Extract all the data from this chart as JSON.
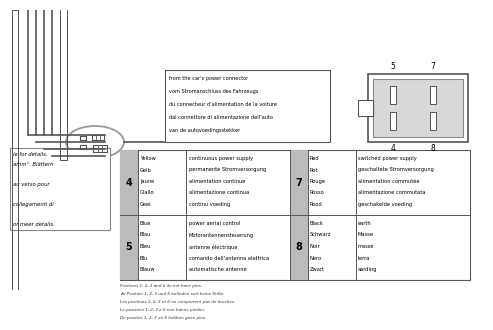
{
  "table_data": [
    {
      "pin": "4",
      "color_name": "Yellow\nGelb\nJaune\nGiallo\nGeel",
      "description": "continuous power supply\npermanente Stromversorgung\nalimentation continue\nalimentazione continua\ncontinu voeding",
      "pin2": "7",
      "color_name2": "Red\nRot\nRouge\nRosso\nRood",
      "description2": "switched power supply\ngeschaltete Stromversorgung\nalimentation commutée\nalimentazione commutata\ngeschakelde voeding"
    },
    {
      "pin": "5",
      "color_name": "Blue\nBlau\nBleu\nBlu\nBlauw",
      "description": "power aerial control\nMotorantennensteuerung\nantenne électrique\ncomando dell'antenna elettrica\nautomatische antenne",
      "pin2": "8",
      "color_name2": "Black\nSchwarz\nNoir\nNero\nZwart",
      "description2": "earth\nMasse\nmasse\nterra\naarding"
    }
  ],
  "callout_text": "from the car's power connector\nvom Stromanschluss des Fahrzeugs\ndu connecteur d'alimentation de la voiture\ndal connettore di alimentazione dell'auto\nvan de autovoedingsstekker",
  "footnote": "Positions 1, 2, 3 and 6 do not have pins.\nAn Position 1, 2, 3 und 6 befinden sich keine Stifte.\nLes positions 1, 2, 3 et 6 ne comportent pas de broches.\nLe posizioni 1, 2, 3 e 6 non hanno piedini.\nDe posities 1, 2, 3 en 6 hebben geen pins.",
  "left_text_lines": [
    "le for details.",
    "amm°. Blättern",
    "",
    "au verso pour",
    "",
    "collegamenti di",
    "",
    "or meer details."
  ],
  "wire_color": "#555555",
  "table_border_color": "#555555",
  "gray_cell_color": "#bbbbbb",
  "text_color": "#111111",
  "footnote_color": "#333333"
}
